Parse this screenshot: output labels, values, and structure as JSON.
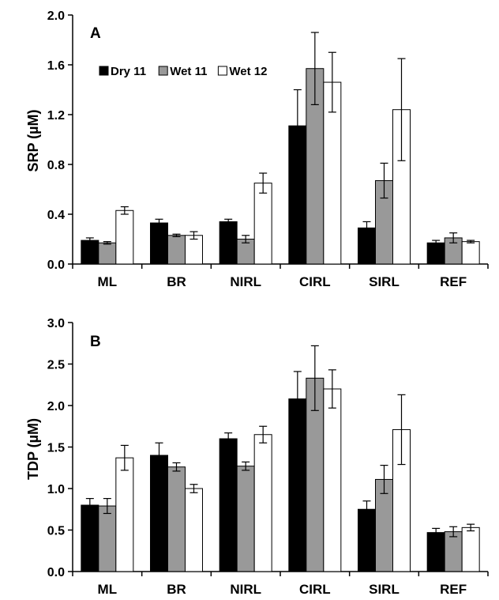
{
  "chart_data": [
    {
      "type": "bar",
      "panel_label": "A",
      "ylabel": "SRP (µM)",
      "ylim": [
        0,
        2.0
      ],
      "yticks": [
        "0.0",
        "0.4",
        "0.8",
        "1.2",
        "1.6",
        "2.0"
      ],
      "ytick_values": [
        0,
        0.4,
        0.8,
        1.2,
        1.6,
        2.0
      ],
      "categories": [
        "ML",
        "BR",
        "NIRL",
        "CIRL",
        "SIRL",
        "REF"
      ],
      "legend": true,
      "series": [
        {
          "name": "Dry 11",
          "color": "#000000",
          "values": [
            0.19,
            0.33,
            0.34,
            1.11,
            0.29,
            0.17
          ],
          "errors": [
            0.02,
            0.03,
            0.02,
            0.29,
            0.05,
            0.02
          ]
        },
        {
          "name": "Wet 11",
          "color": "#999999",
          "values": [
            0.17,
            0.23,
            0.2,
            1.57,
            0.67,
            0.21
          ],
          "errors": [
            0.01,
            0.01,
            0.03,
            0.29,
            0.14,
            0.04
          ]
        },
        {
          "name": "Wet 12",
          "color": "#ffffff",
          "values": [
            0.43,
            0.23,
            0.65,
            1.46,
            1.24,
            0.18
          ],
          "errors": [
            0.03,
            0.03,
            0.08,
            0.24,
            0.41,
            0.01
          ]
        }
      ]
    },
    {
      "type": "bar",
      "panel_label": "B",
      "ylabel": "TDP (µM)",
      "ylim": [
        0,
        3.0
      ],
      "yticks": [
        "0.0",
        "0.5",
        "1.0",
        "1.5",
        "2.0",
        "2.5",
        "3.0"
      ],
      "ytick_values": [
        0,
        0.5,
        1.0,
        1.5,
        2.0,
        2.5,
        3.0
      ],
      "categories": [
        "ML",
        "BR",
        "NIRL",
        "CIRL",
        "SIRL",
        "REF"
      ],
      "legend": false,
      "series": [
        {
          "name": "Dry 11",
          "color": "#000000",
          "values": [
            0.8,
            1.4,
            1.6,
            2.08,
            0.75,
            0.47
          ],
          "errors": [
            0.08,
            0.15,
            0.07,
            0.33,
            0.1,
            0.05
          ]
        },
        {
          "name": "Wet 11",
          "color": "#999999",
          "values": [
            0.79,
            1.26,
            1.27,
            2.33,
            1.11,
            0.48
          ],
          "errors": [
            0.09,
            0.05,
            0.05,
            0.39,
            0.17,
            0.06
          ]
        },
        {
          "name": "Wet 12",
          "color": "#ffffff",
          "values": [
            1.37,
            1.0,
            1.65,
            2.2,
            1.71,
            0.53
          ],
          "errors": [
            0.15,
            0.05,
            0.1,
            0.23,
            0.42,
            0.04
          ]
        }
      ]
    }
  ]
}
